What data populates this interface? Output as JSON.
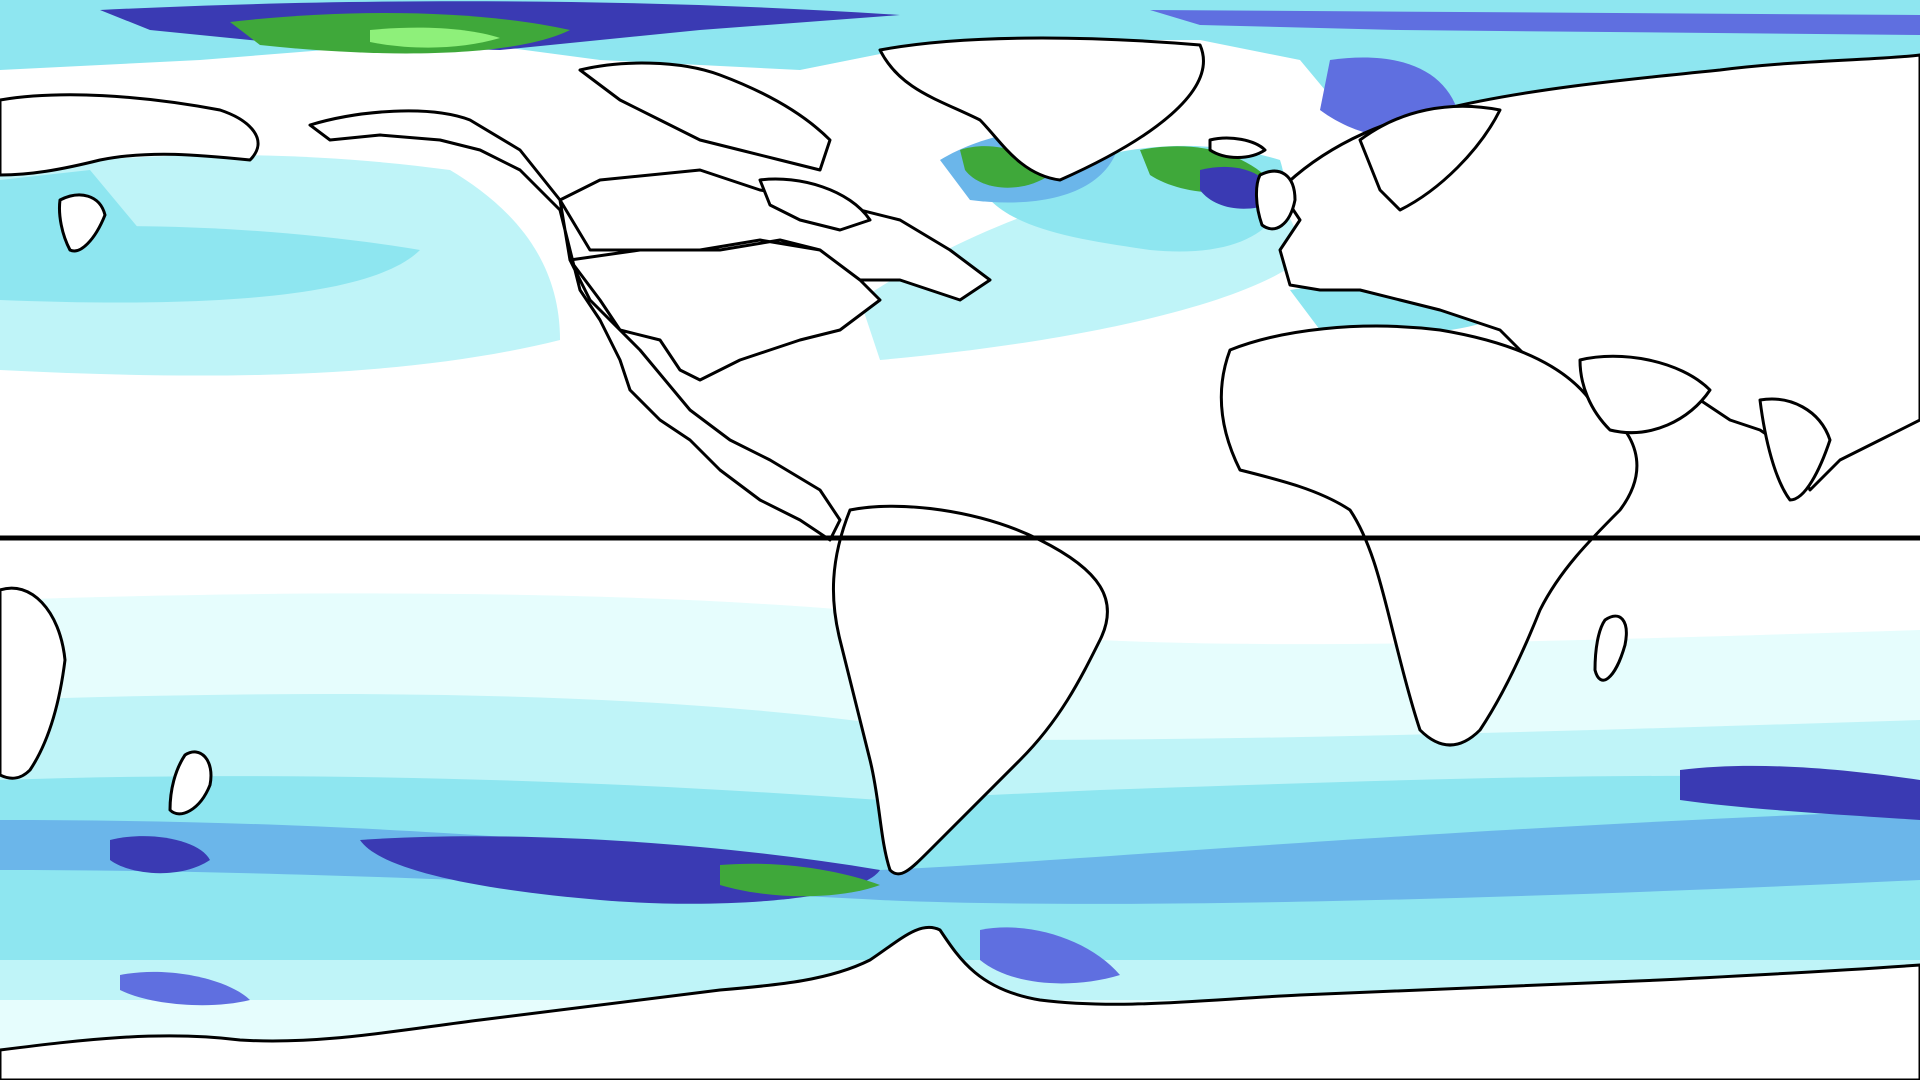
{
  "map": {
    "type": "global ocean field map",
    "projection": "equirectangular",
    "colors": {
      "background": "#ffffff",
      "level_1": "#e6fdfd",
      "level_2": "#bff4f8",
      "level_3": "#8ee6f0",
      "level_4": "#6bb6ea",
      "level_5": "#5f6fe0",
      "level_6": "#3a3ab3",
      "level_7": "#3fa83a",
      "level_8": "#8ef07a",
      "coastline": "#000000",
      "equator_line": "#000000"
    },
    "features": [
      "coastlines",
      "equator-line",
      "ocean-shading"
    ]
  }
}
